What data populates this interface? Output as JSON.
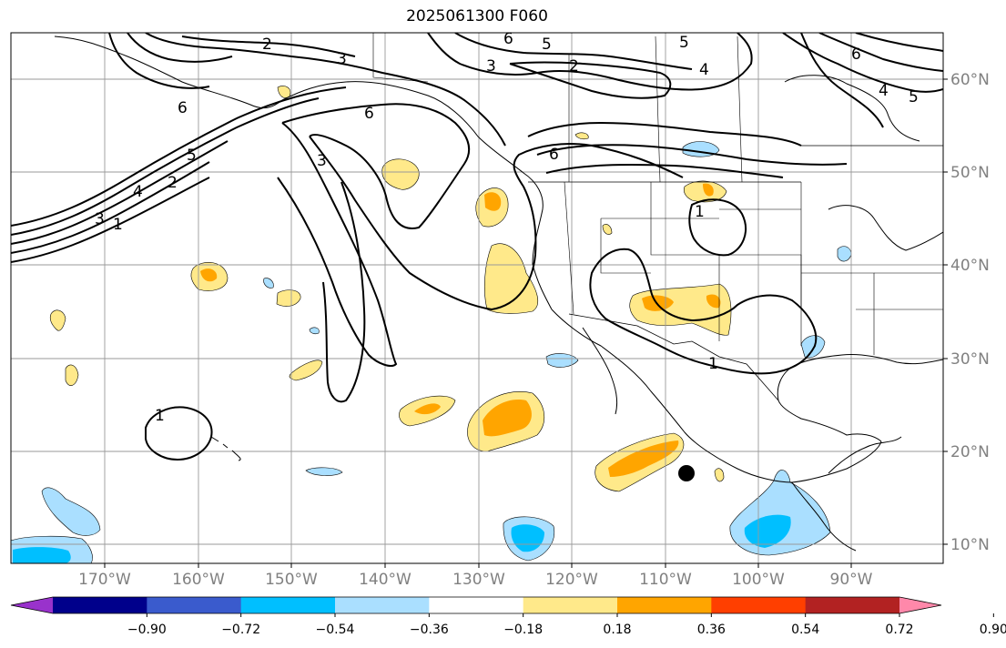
{
  "title": "2025061300 F060",
  "longitude_labels": [
    "170°W",
    "160°W",
    "150°W",
    "140°W",
    "130°W",
    "120°W",
    "110°W",
    "100°W",
    "90°W"
  ],
  "latitude_labels": [
    "60°N",
    "50°N",
    "40°N",
    "30°N",
    "20°N",
    "10°N"
  ],
  "colorbar": {
    "ticks": [
      "−0.90",
      "−0.72",
      "−0.54",
      "−0.36",
      "−0.18",
      "0.18",
      "0.36",
      "0.54",
      "0.72",
      "0.90"
    ],
    "colors": [
      "#9932cc",
      "#00008b",
      "#3a5bcd",
      "#00bfff",
      "#aadfff",
      "#ffffff",
      "#ffe98a",
      "#ffa500",
      "#ff3f00",
      "#b22222",
      "#ff88aa"
    ]
  },
  "contour_labels": [
    "2",
    "3",
    "6",
    "5",
    "6",
    "3",
    "2",
    "5",
    "4",
    "6",
    "4",
    "5",
    "6",
    "3",
    "5",
    "4",
    "2",
    "3",
    "1",
    "6",
    "1",
    "1",
    "1"
  ],
  "colors": {
    "land_outline": "#000000",
    "grid": "#999999",
    "contour": "#000000",
    "marker": "#000000"
  }
}
